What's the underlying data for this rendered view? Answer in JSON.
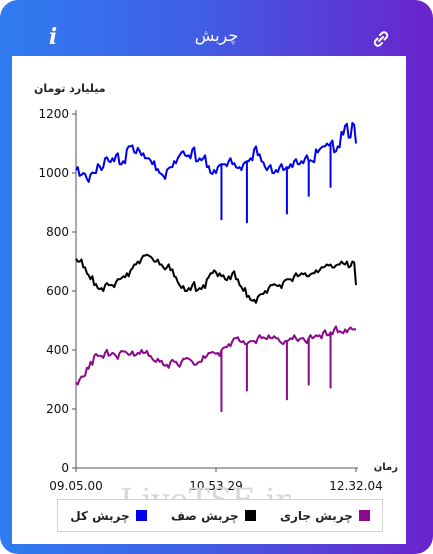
{
  "header": {
    "title": "چربش",
    "info_glyph": "i",
    "info_icon": "info-icon",
    "link_icon": "link-icon"
  },
  "watermark": "LiveTSE.ir",
  "colors": {
    "gradient_start": "#2f7cf0",
    "gradient_end": "#6b23cc",
    "series_total": "#0000ee",
    "series_zero": "#000000",
    "series_current": "#8a0a8a"
  },
  "chart_data": {
    "type": "line",
    "ylabel": "میلیارد تومان",
    "xlabel": "زمان",
    "ylim": [
      0,
      1200
    ],
    "yticks": [
      0,
      200,
      400,
      600,
      800,
      1000,
      1200
    ],
    "xticks": [
      "09.05.00",
      "10.53.29",
      "12.32.04"
    ],
    "grid": false,
    "legend_position": "bottom",
    "series": [
      {
        "name": "چربش کل",
        "color": "#0000ee",
        "values": [
          1010,
          990,
          1000,
          980,
          995,
          1000,
          1030,
          1010,
          1050,
          1040,
          1050,
          1060,
          1030,
          1040,
          1080,
          1090,
          1070,
          1085,
          1060,
          1050,
          1050,
          1030,
          1010,
          1000,
          990,
          1010,
          1020,
          1040,
          1050,
          1070,
          1060,
          1060,
          1080,
          1040,
          1050,
          1050,
          1020,
          1000,
          1010,
          1020,
          1030,
          1030,
          1040,
          1030,
          1020,
          1020,
          1030,
          1040,
          1050,
          1080,
          1060,
          1040,
          1020,
          1020,
          1000,
          1010,
          1020,
          1010,
          1020,
          1030,
          1040,
          1030,
          1040,
          1050,
          1040,
          1040,
          1080,
          1080,
          1090,
          1100,
          1100,
          1070,
          1090,
          1140,
          1160,
          1120,
          1170,
          1100
        ],
        "spikes": [
          {
            "index": 40,
            "value": 840
          },
          {
            "index": 47,
            "value": 830
          },
          {
            "index": 58,
            "value": 860
          },
          {
            "index": 64,
            "value": 920
          },
          {
            "index": 70,
            "value": 950
          }
        ]
      },
      {
        "name": "چربش صف",
        "color": "#000000",
        "values": [
          710,
          700,
          680,
          660,
          640,
          620,
          610,
          610,
          620,
          620,
          620,
          630,
          640,
          650,
          660,
          670,
          690,
          700,
          710,
          720,
          720,
          710,
          700,
          690,
          680,
          680,
          670,
          650,
          630,
          610,
          600,
          610,
          620,
          600,
          610,
          620,
          640,
          660,
          670,
          650,
          650,
          640,
          650,
          660,
          640,
          620,
          600,
          580,
          570,
          570,
          580,
          590,
          600,
          610,
          620,
          620,
          620,
          630,
          640,
          640,
          650,
          650,
          660,
          660,
          650,
          660,
          670,
          670,
          680,
          690,
          690,
          680,
          690,
          700,
          690,
          680,
          700,
          620
        ]
      },
      {
        "name": "چربش جاری",
        "color": "#8a0a8a",
        "values": [
          290,
          300,
          310,
          340,
          360,
          380,
          380,
          380,
          390,
          380,
          390,
          380,
          390,
          395,
          390,
          385,
          380,
          390,
          400,
          390,
          380,
          370,
          360,
          360,
          350,
          350,
          360,
          360,
          350,
          360,
          370,
          370,
          360,
          350,
          360,
          380,
          380,
          390,
          390,
          390,
          400,
          410,
          420,
          430,
          440,
          430,
          430,
          420,
          430,
          430,
          440,
          440,
          440,
          450,
          440,
          440,
          430,
          420,
          430,
          440,
          450,
          430,
          440,
          430,
          440,
          440,
          450,
          450,
          460,
          450,
          460,
          470,
          460,
          460,
          470,
          470,
          470,
          470
        ]
      }
    ]
  }
}
